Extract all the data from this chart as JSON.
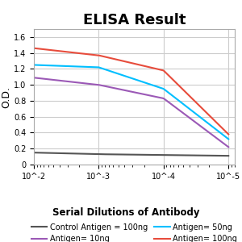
{
  "title": "ELISA Result",
  "ylabel": "O.D.",
  "xlabel": "Serial Dilutions of Antibody",
  "x_ticks": [
    0.01,
    0.001,
    0.0001,
    1e-05
  ],
  "x_tick_labels": [
    "10^-2",
    "10^-3",
    "10^-4",
    "10^-5"
  ],
  "ylim": [
    0,
    1.7
  ],
  "yticks": [
    0,
    0.2,
    0.4,
    0.6,
    0.8,
    1.0,
    1.2,
    1.4,
    1.6
  ],
  "lines": {
    "control": {
      "label": "Control Antigen = 100ng",
      "color": "#555555",
      "y_values": [
        0.15,
        0.13,
        0.12,
        0.11
      ]
    },
    "antigen10": {
      "label": "Antigen= 10ng",
      "color": "#9b59b6",
      "y_values": [
        1.09,
        1.0,
        0.83,
        0.22
      ]
    },
    "antigen50": {
      "label": "Antigen= 50ng",
      "color": "#00bfff",
      "y_values": [
        1.25,
        1.22,
        0.95,
        0.32
      ]
    },
    "antigen100": {
      "label": "Antigen= 100ng",
      "color": "#e74c3c",
      "y_values": [
        1.46,
        1.37,
        1.18,
        0.38
      ]
    }
  },
  "background_color": "#ffffff",
  "grid_color": "#cccccc",
  "title_fontsize": 13,
  "label_fontsize": 9,
  "legend_fontsize": 7
}
